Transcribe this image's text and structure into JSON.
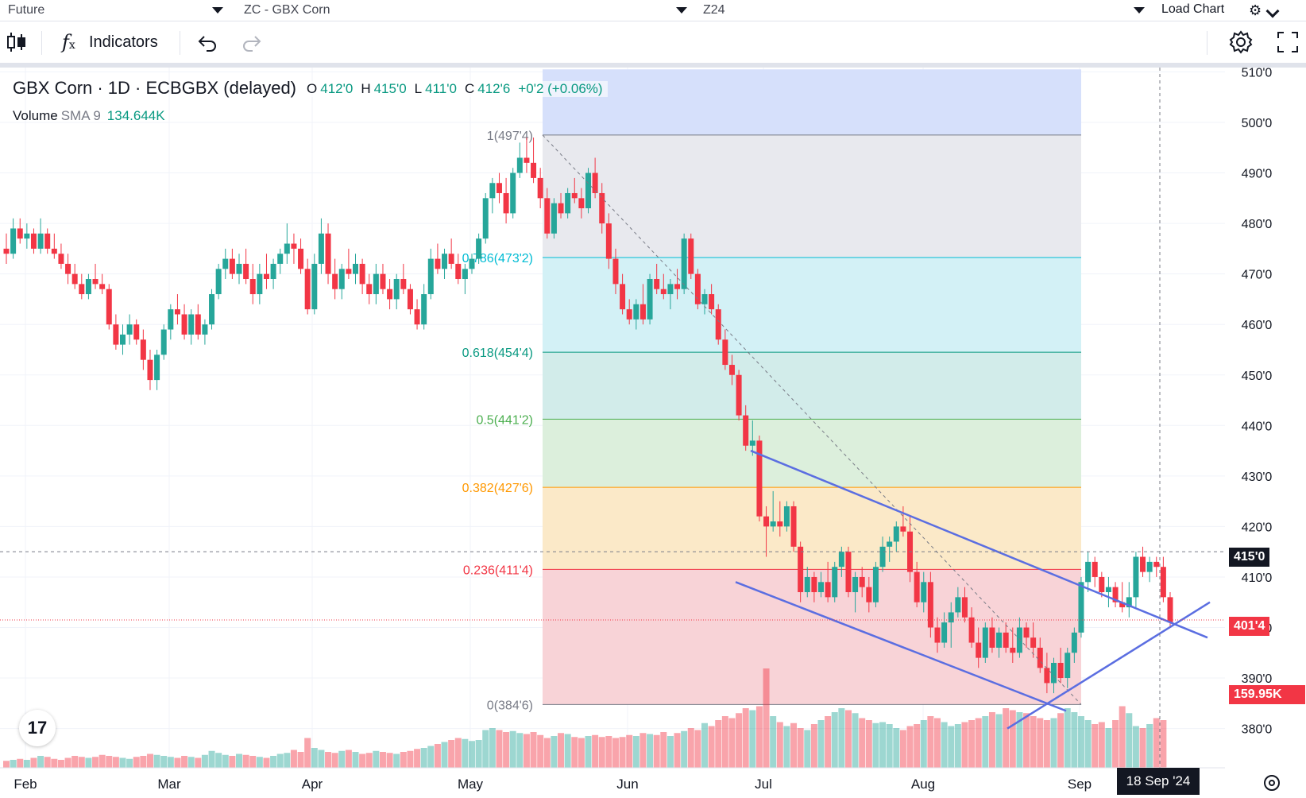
{
  "topbar": {
    "type_select": "Future",
    "symbol_select": "ZC - GBX Corn",
    "contract_select": "Z24",
    "load_chart": "Load Chart",
    "gear_icon": "gear-icon",
    "chevron_icon": "chevron-down-icon"
  },
  "toolbar": {
    "candle_icon": "candles-icon",
    "fx_icon": "fx-icon",
    "indicators": "Indicators",
    "undo_icon": "undo-icon",
    "redo_icon": "redo-icon",
    "settings_icon": "gear-icon",
    "fullscreen_icon": "fullscreen-icon"
  },
  "legend": {
    "title": "GBX Corn · 1D · ECBGBX (delayed)",
    "o_label": "O",
    "o": "412'0",
    "h_label": "H",
    "h": "415'0",
    "l_label": "L",
    "l": "411'0",
    "c_label": "C",
    "c": "412'6",
    "change": "+0'2 (+0.06%)",
    "volume_label": "Volume",
    "sma_label": "SMA 9",
    "sma_value": "134.644K"
  },
  "colors": {
    "up": "#26a69a",
    "down": "#f23645",
    "trendline": "#5b6ee1",
    "text": "#131722"
  },
  "chart_data": {
    "type": "candlestick",
    "title": "GBX Corn · 1D · ECBGBX (delayed)",
    "x_tick_labels": [
      "Feb",
      "Mar",
      "Apr",
      "May",
      "Jun",
      "Jul",
      "Aug",
      "Sep"
    ],
    "y_tick_labels": [
      "510'0",
      "500'0",
      "490'0",
      "480'0",
      "470'0",
      "460'0",
      "450'0",
      "440'0",
      "430'0",
      "420'0",
      "410'0",
      "400'0",
      "390'0",
      "380'0"
    ],
    "y_ticks": [
      510,
      500,
      490,
      480,
      470,
      460,
      450,
      440,
      430,
      420,
      410,
      400,
      390,
      380
    ],
    "ylim": [
      373.7,
      513.6
    ],
    "crosshair_date": "18 Sep '24",
    "crosshair_price": "415'0",
    "last_price": "401'4",
    "last_volume": "159.95K",
    "fib_levels": [
      {
        "label": "1(497'4)",
        "ratio": 1,
        "price": 497.5,
        "fill": "#e8e9ee",
        "line": "#787b86",
        "text_color": "#787b86"
      },
      {
        "label": "0.786(473'2)",
        "ratio": 0.786,
        "price": 473.25,
        "fill": "#d3f1f6",
        "line": "#00bcd4",
        "text_color": "#00bcd4"
      },
      {
        "label": "0.618(454'4)",
        "ratio": 0.618,
        "price": 454.5,
        "fill": "#d2ecea",
        "line": "#089981",
        "text_color": "#089981"
      },
      {
        "label": "0.5(441'2)",
        "ratio": 0.5,
        "price": 441.25,
        "fill": "#dcefdc",
        "line": "#4caf50",
        "text_color": "#4caf50"
      },
      {
        "label": "0.382(427'6)",
        "ratio": 0.382,
        "price": 427.75,
        "fill": "#fbe9c8",
        "line": "#ff9800",
        "text_color": "#ff9800"
      },
      {
        "label": "0.236(411'4)",
        "ratio": 0.236,
        "price": 411.5,
        "fill": "#f8d3d7",
        "line": "#f23645",
        "text_color": "#f23645"
      },
      {
        "label": "0(384'6)",
        "ratio": 0,
        "price": 384.75,
        "fill": "none",
        "line": "#787b86",
        "text_color": "#787b86"
      }
    ],
    "fib_top_band": {
      "price_top": 510.5,
      "fill": "#d6e0fb"
    },
    "candles": [
      [
        475,
        478,
        472,
        474
      ],
      [
        474,
        481,
        473,
        479
      ],
      [
        479,
        481,
        476,
        477
      ],
      [
        477,
        480,
        475,
        478
      ],
      [
        478,
        479,
        474,
        475
      ],
      [
        475,
        481,
        474,
        478
      ],
      [
        478,
        479,
        474,
        475
      ],
      [
        475,
        478,
        473,
        474
      ],
      [
        474,
        476,
        471,
        472
      ],
      [
        472,
        474,
        468,
        470
      ],
      [
        470,
        472,
        467,
        468
      ],
      [
        468,
        470,
        465,
        466
      ],
      [
        466,
        470,
        465,
        469
      ],
      [
        469,
        472,
        467,
        468
      ],
      [
        468,
        470,
        466,
        467
      ],
      [
        467,
        468,
        459,
        460
      ],
      [
        460,
        462,
        455,
        456
      ],
      [
        456,
        460,
        454,
        458
      ],
      [
        458,
        462,
        456,
        460
      ],
      [
        460,
        461,
        456,
        457
      ],
      [
        457,
        459,
        451,
        453
      ],
      [
        453,
        455,
        447,
        449
      ],
      [
        449,
        455,
        447,
        454
      ],
      [
        454,
        460,
        453,
        459
      ],
      [
        459,
        464,
        457,
        463
      ],
      [
        463,
        466,
        460,
        462
      ],
      [
        462,
        464,
        457,
        458
      ],
      [
        458,
        463,
        456,
        462
      ],
      [
        462,
        464,
        457,
        458
      ],
      [
        458,
        461,
        456,
        460
      ],
      [
        460,
        467,
        459,
        466
      ],
      [
        466,
        472,
        465,
        471
      ],
      [
        471,
        475,
        469,
        473
      ],
      [
        473,
        475,
        469,
        470
      ],
      [
        470,
        474,
        468,
        472
      ],
      [
        472,
        475,
        468,
        469
      ],
      [
        469,
        472,
        464,
        466
      ],
      [
        466,
        472,
        464,
        470
      ],
      [
        470,
        474,
        467,
        469
      ],
      [
        469,
        473,
        467,
        472
      ],
      [
        472,
        475,
        470,
        474
      ],
      [
        474,
        480,
        472,
        476
      ],
      [
        476,
        478,
        472,
        475
      ],
      [
        475,
        477,
        470,
        471
      ],
      [
        471,
        473,
        462,
        463
      ],
      [
        463,
        474,
        462,
        472
      ],
      [
        472,
        481,
        470,
        478
      ],
      [
        478,
        480,
        468,
        470
      ],
      [
        470,
        473,
        465,
        467
      ],
      [
        467,
        472,
        465,
        471
      ],
      [
        471,
        475,
        469,
        470
      ],
      [
        470,
        474,
        468,
        472
      ],
      [
        472,
        473,
        466,
        468
      ],
      [
        468,
        470,
        464,
        466
      ],
      [
        466,
        472,
        464,
        470
      ],
      [
        470,
        472,
        466,
        467
      ],
      [
        467,
        469,
        463,
        465
      ],
      [
        465,
        470,
        463,
        469
      ],
      [
        469,
        472,
        466,
        467
      ],
      [
        467,
        468,
        462,
        463
      ],
      [
        463,
        465,
        459,
        460
      ],
      [
        460,
        468,
        459,
        466
      ],
      [
        466,
        475,
        465,
        473
      ],
      [
        473,
        476,
        470,
        471
      ],
      [
        471,
        475,
        469,
        474
      ],
      [
        474,
        477,
        471,
        472
      ],
      [
        472,
        474,
        468,
        469
      ],
      [
        469,
        472,
        466,
        471
      ],
      [
        471,
        474,
        470,
        473
      ],
      [
        473,
        478,
        472,
        477
      ],
      [
        477,
        486,
        476,
        485
      ],
      [
        485,
        489,
        482,
        488
      ],
      [
        488,
        490,
        484,
        486
      ],
      [
        486,
        489,
        480,
        482
      ],
      [
        482,
        491,
        481,
        490
      ],
      [
        490,
        496,
        489,
        493
      ],
      [
        493,
        497,
        490,
        492
      ],
      [
        492,
        497,
        488,
        489
      ],
      [
        489,
        491,
        483,
        485
      ],
      [
        485,
        487,
        477,
        478
      ],
      [
        478,
        485,
        477,
        484
      ],
      [
        484,
        486,
        481,
        482
      ],
      [
        482,
        487,
        481,
        486
      ],
      [
        486,
        489,
        484,
        485
      ],
      [
        485,
        487,
        481,
        483
      ],
      [
        483,
        491,
        482,
        490
      ],
      [
        490,
        493,
        485,
        486
      ],
      [
        486,
        488,
        478,
        480
      ],
      [
        480,
        482,
        471,
        473
      ],
      [
        473,
        475,
        466,
        468
      ],
      [
        468,
        470,
        462,
        463
      ],
      [
        463,
        465,
        460,
        461
      ],
      [
        461,
        465,
        459,
        464
      ],
      [
        464,
        468,
        460,
        461
      ],
      [
        461,
        470,
        460,
        469
      ],
      [
        469,
        472,
        466,
        467
      ],
      [
        467,
        470,
        465,
        466
      ],
      [
        466,
        469,
        463,
        468
      ],
      [
        468,
        471,
        465,
        467
      ],
      [
        467,
        478,
        466,
        477
      ],
      [
        477,
        478,
        469,
        470
      ],
      [
        470,
        471,
        463,
        464
      ],
      [
        464,
        467,
        462,
        466
      ],
      [
        466,
        468,
        462,
        463
      ],
      [
        463,
        464,
        456,
        457
      ],
      [
        457,
        459,
        451,
        452
      ],
      [
        452,
        454,
        448,
        450
      ],
      [
        450,
        451,
        441,
        442
      ],
      [
        442,
        444,
        435,
        436
      ],
      [
        436,
        441,
        434,
        437
      ],
      [
        437,
        438,
        421,
        422
      ],
      [
        422,
        424,
        414,
        420
      ],
      [
        420,
        427,
        419,
        421
      ],
      [
        421,
        425,
        418,
        420
      ],
      [
        420,
        425,
        419,
        424
      ],
      [
        424,
        425,
        415,
        416
      ],
      [
        416,
        417,
        405,
        407
      ],
      [
        407,
        412,
        406,
        410
      ],
      [
        410,
        411,
        405,
        407
      ],
      [
        407,
        411,
        406,
        409
      ],
      [
        409,
        413,
        405,
        406
      ],
      [
        406,
        413,
        405,
        412
      ],
      [
        412,
        416,
        410,
        415
      ],
      [
        415,
        416,
        406,
        407
      ],
      [
        407,
        411,
        403,
        410
      ],
      [
        410,
        412,
        406,
        408
      ],
      [
        408,
        410,
        403,
        405
      ],
      [
        405,
        413,
        404,
        412
      ],
      [
        412,
        418,
        411,
        416
      ],
      [
        416,
        418,
        413,
        417
      ],
      [
        417,
        421,
        415,
        420
      ],
      [
        420,
        424,
        418,
        419
      ],
      [
        419,
        422,
        409,
        411
      ],
      [
        411,
        413,
        404,
        405
      ],
      [
        405,
        411,
        403,
        409
      ],
      [
        409,
        411,
        398,
        400
      ],
      [
        400,
        402,
        395,
        397
      ],
      [
        397,
        403,
        396,
        401
      ],
      [
        401,
        405,
        396,
        403
      ],
      [
        403,
        408,
        402,
        406
      ],
      [
        406,
        408,
        401,
        402
      ],
      [
        402,
        404,
        396,
        397
      ],
      [
        397,
        400,
        392,
        394
      ],
      [
        394,
        401,
        393,
        400
      ],
      [
        400,
        402,
        395,
        396
      ],
      [
        396,
        400,
        394,
        399
      ],
      [
        399,
        401,
        395,
        396
      ],
      [
        396,
        400,
        393,
        395
      ],
      [
        395,
        402,
        394,
        400
      ],
      [
        400,
        401,
        396,
        398
      ],
      [
        398,
        401,
        394,
        396
      ],
      [
        396,
        398,
        391,
        392
      ],
      [
        392,
        395,
        387,
        389
      ],
      [
        389,
        394,
        387,
        393
      ],
      [
        393,
        396,
        389,
        390
      ],
      [
        390,
        396,
        388,
        395
      ],
      [
        395,
        400,
        393,
        399
      ],
      [
        399,
        410,
        398,
        409
      ],
      [
        409,
        415,
        407,
        413
      ],
      [
        413,
        414,
        408,
        410
      ],
      [
        410,
        411,
        406,
        407
      ],
      [
        407,
        410,
        404,
        408
      ],
      [
        408,
        409,
        404,
        405
      ],
      [
        405,
        409,
        403,
        404
      ],
      [
        404,
        409,
        402,
        406
      ],
      [
        406,
        415,
        404,
        414
      ],
      [
        414,
        416,
        410,
        411
      ],
      [
        411,
        414,
        409,
        413
      ],
      [
        413,
        414,
        410,
        412
      ],
      [
        412,
        414,
        405,
        406
      ],
      [
        406,
        407,
        400,
        401
      ]
    ],
    "volumes": [
      7,
      8,
      9,
      8,
      10,
      12,
      11,
      9,
      8,
      10,
      12,
      11,
      10,
      11,
      13,
      12,
      11,
      10,
      9,
      11,
      12,
      14,
      13,
      12,
      11,
      10,
      12,
      11,
      10,
      13,
      17,
      15,
      13,
      12,
      14,
      13,
      12,
      11,
      10,
      12,
      14,
      15,
      18,
      16,
      30,
      20,
      18,
      16,
      15,
      17,
      18,
      16,
      14,
      15,
      17,
      16,
      15,
      14,
      16,
      17,
      19,
      20,
      22,
      24,
      26,
      28,
      30,
      29,
      27,
      28,
      38,
      40,
      38,
      36,
      37,
      35,
      34,
      36,
      33,
      30,
      32,
      35,
      34,
      31,
      30,
      32,
      33,
      31,
      32,
      30,
      31,
      33,
      32,
      35,
      34,
      33,
      36,
      32,
      35,
      37,
      40,
      38,
      45,
      42,
      48,
      52,
      50,
      55,
      60,
      58,
      62,
      100,
      52,
      46,
      42,
      45,
      40,
      38,
      44,
      48,
      52,
      56,
      60,
      58,
      55,
      50,
      48,
      45,
      46,
      44,
      40,
      38,
      42,
      44,
      48,
      52,
      50,
      46,
      42,
      44,
      46,
      48,
      50,
      52,
      56,
      54,
      60,
      58,
      56,
      55,
      52,
      50,
      48,
      50,
      55,
      60,
      56,
      52,
      48,
      44,
      46,
      40,
      48,
      62,
      55,
      42,
      40,
      44,
      50,
      48
    ]
  }
}
